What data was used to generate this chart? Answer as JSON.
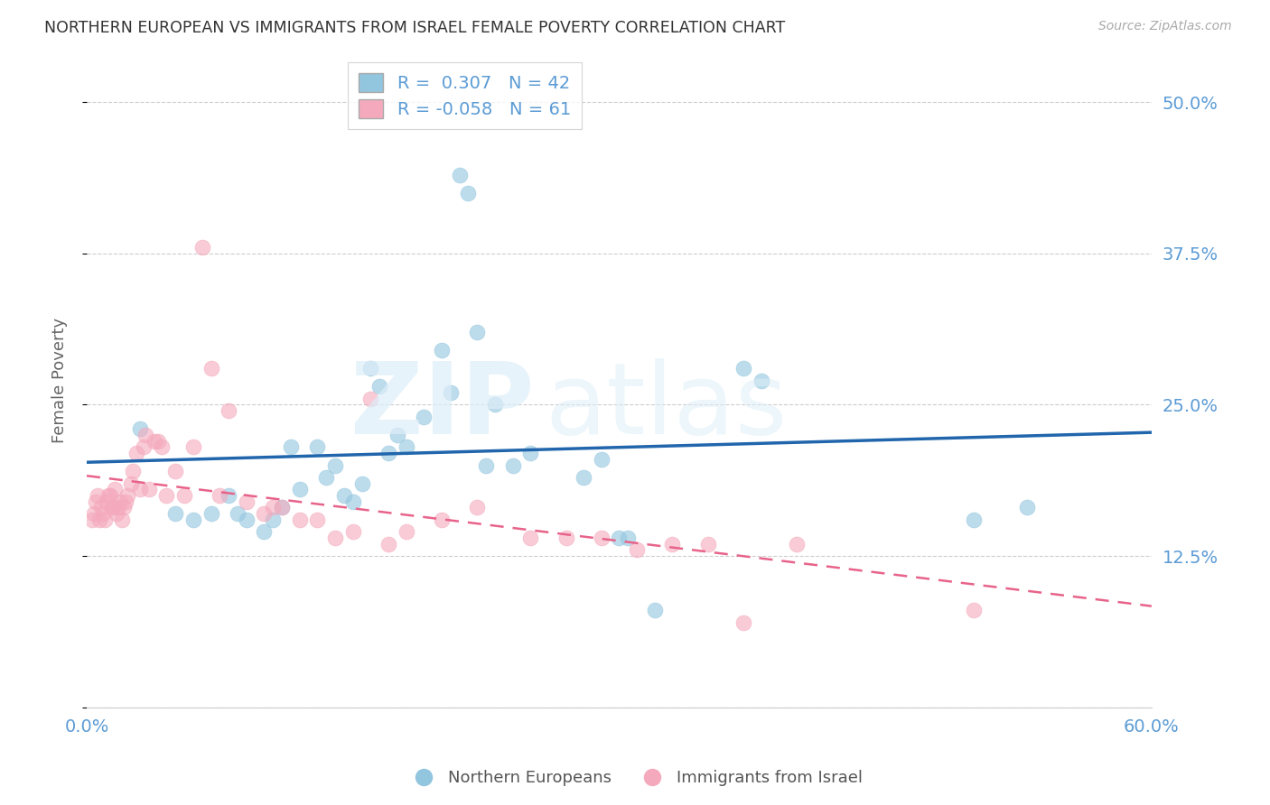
{
  "title": "NORTHERN EUROPEAN VS IMMIGRANTS FROM ISRAEL FEMALE POVERTY CORRELATION CHART",
  "source": "Source: ZipAtlas.com",
  "ylabel": "Female Poverty",
  "xlim": [
    0.0,
    0.6
  ],
  "ylim": [
    0.0,
    0.54
  ],
  "yticks": [
    0.0,
    0.125,
    0.25,
    0.375,
    0.5
  ],
  "ytick_labels": [
    "",
    "12.5%",
    "25.0%",
    "37.5%",
    "50.0%"
  ],
  "xticks": [
    0.0,
    0.1,
    0.2,
    0.3,
    0.4,
    0.5,
    0.6
  ],
  "legend1_R": "0.307",
  "legend1_N": "42",
  "legend2_R": "-0.058",
  "legend2_N": "61",
  "blue_color": "#92c5de",
  "pink_color": "#f4a9bc",
  "line_blue": "#2166ac",
  "line_pink": "#e8638a",
  "blue_scatter_x": [
    0.03,
    0.05,
    0.06,
    0.07,
    0.08,
    0.085,
    0.09,
    0.1,
    0.105,
    0.11,
    0.115,
    0.12,
    0.13,
    0.135,
    0.14,
    0.145,
    0.15,
    0.155,
    0.16,
    0.165,
    0.17,
    0.175,
    0.18,
    0.19,
    0.2,
    0.205,
    0.21,
    0.215,
    0.22,
    0.225,
    0.23,
    0.24,
    0.25,
    0.28,
    0.29,
    0.3,
    0.305,
    0.32,
    0.37,
    0.38,
    0.5,
    0.53
  ],
  "blue_scatter_y": [
    0.23,
    0.16,
    0.155,
    0.16,
    0.175,
    0.16,
    0.155,
    0.145,
    0.155,
    0.165,
    0.215,
    0.18,
    0.215,
    0.19,
    0.2,
    0.175,
    0.17,
    0.185,
    0.28,
    0.265,
    0.21,
    0.225,
    0.215,
    0.24,
    0.295,
    0.26,
    0.44,
    0.425,
    0.31,
    0.2,
    0.25,
    0.2,
    0.21,
    0.19,
    0.205,
    0.14,
    0.14,
    0.08,
    0.28,
    0.27,
    0.155,
    0.165
  ],
  "pink_scatter_x": [
    0.003,
    0.004,
    0.005,
    0.006,
    0.007,
    0.008,
    0.009,
    0.01,
    0.011,
    0.012,
    0.013,
    0.014,
    0.015,
    0.016,
    0.017,
    0.018,
    0.019,
    0.02,
    0.021,
    0.022,
    0.023,
    0.025,
    0.026,
    0.028,
    0.03,
    0.032,
    0.033,
    0.035,
    0.038,
    0.04,
    0.042,
    0.045,
    0.05,
    0.055,
    0.06,
    0.065,
    0.07,
    0.075,
    0.08,
    0.09,
    0.1,
    0.105,
    0.11,
    0.12,
    0.13,
    0.14,
    0.15,
    0.16,
    0.17,
    0.18,
    0.2,
    0.22,
    0.25,
    0.27,
    0.29,
    0.31,
    0.33,
    0.35,
    0.37,
    0.4,
    0.5
  ],
  "pink_scatter_y": [
    0.155,
    0.16,
    0.17,
    0.175,
    0.155,
    0.165,
    0.16,
    0.155,
    0.17,
    0.175,
    0.175,
    0.165,
    0.165,
    0.18,
    0.16,
    0.165,
    0.17,
    0.155,
    0.165,
    0.17,
    0.175,
    0.185,
    0.195,
    0.21,
    0.18,
    0.215,
    0.225,
    0.18,
    0.22,
    0.22,
    0.215,
    0.175,
    0.195,
    0.175,
    0.215,
    0.38,
    0.28,
    0.175,
    0.245,
    0.17,
    0.16,
    0.165,
    0.165,
    0.155,
    0.155,
    0.14,
    0.145,
    0.255,
    0.135,
    0.145,
    0.155,
    0.165,
    0.14,
    0.14,
    0.14,
    0.13,
    0.135,
    0.135,
    0.07,
    0.135,
    0.08
  ],
  "background_color": "#ffffff",
  "grid_color": "#c8c8c8",
  "tick_color": "#5b9bd5",
  "axis_label_color": "#666666"
}
